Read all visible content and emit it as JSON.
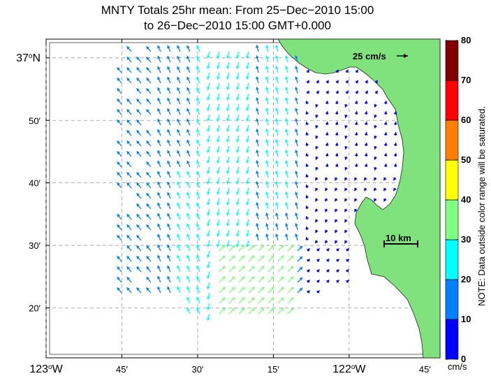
{
  "title": {
    "line1": "MNTY Totals 25hr mean: From 25−Dec−2010 15:00",
    "line2": "to 26−Dec−2010 15:00 GMT+0.000"
  },
  "map": {
    "lon_ticks": [
      {
        "id": "lon-123",
        "lon": -123.0,
        "label": "123",
        "deg": "o",
        "hemi": "W",
        "big": true
      },
      {
        "id": "lon-45a",
        "lon": -122.75,
        "label": "45′"
      },
      {
        "id": "lon-30a",
        "lon": -122.5,
        "label": "30′"
      },
      {
        "id": "lon-15a",
        "lon": -122.25,
        "label": "15′"
      },
      {
        "id": "lon-122",
        "lon": -122.0,
        "label": "122",
        "deg": "o",
        "hemi": "W",
        "big": true
      },
      {
        "id": "lon-45b",
        "lon": -121.75,
        "label": "45′"
      }
    ],
    "lat_ticks": [
      {
        "id": "lat-37",
        "lat": 37.0,
        "label": "37",
        "deg": "o",
        "hemi": "N",
        "big": true
      },
      {
        "id": "lat-50",
        "lat": 36.8333,
        "label": "50′"
      },
      {
        "id": "lat-40",
        "lat": 36.6667,
        "label": "40′"
      },
      {
        "id": "lat-30",
        "lat": 36.5,
        "label": "30′"
      },
      {
        "id": "lat-20",
        "lat": 36.3333,
        "label": "20′"
      }
    ],
    "extent": {
      "lon_min": -123.0,
      "lon_max": -121.7,
      "lat_min": 36.2,
      "lat_max": 37.05
    },
    "land_color": "#80e27c",
    "reference_vector_label": "25 cm/s",
    "scale_bar_label": "10 km"
  },
  "colorbar": {
    "labels": [
      "0",
      "10",
      "20",
      "30",
      "40",
      "50",
      "60",
      "70",
      "80"
    ],
    "colors": [
      "#0000ff",
      "#0080ff",
      "#00ffff",
      "#80ff80",
      "#ffff00",
      "#ff8000",
      "#ff0000",
      "#800000"
    ],
    "unit": "cm/s",
    "note": "NOTE: Data outside color range will be saturated."
  }
}
